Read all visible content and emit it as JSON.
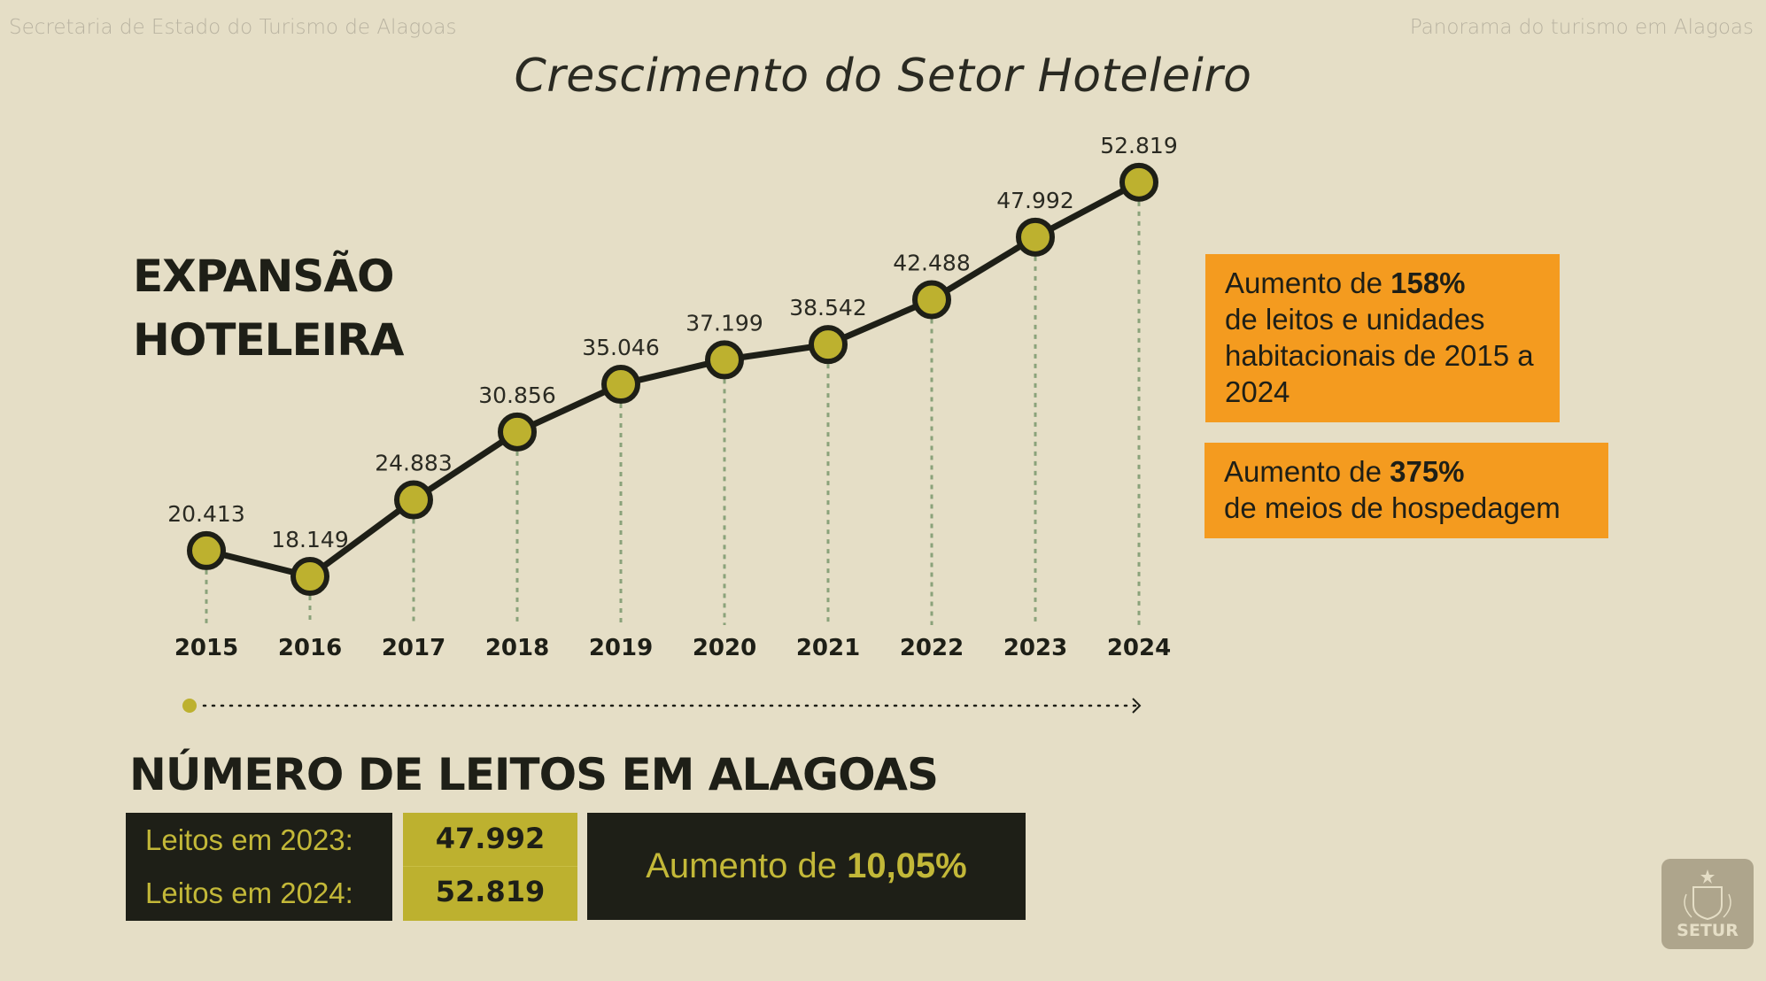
{
  "header": {
    "left": "Secretaria de Estado do Turismo de Alagoas",
    "right": "Panorama do turismo em Alagoas"
  },
  "title": "Crescimento do Setor Hoteleiro",
  "section_heading": {
    "line1": "EXPANSÃO",
    "line2": "HOTELEIRA"
  },
  "chart_data": {
    "type": "line",
    "categories": [
      "2015",
      "2016",
      "2017",
      "2018",
      "2019",
      "2020",
      "2021",
      "2022",
      "2023",
      "2024"
    ],
    "values": [
      20413,
      18149,
      24883,
      30856,
      35046,
      37199,
      38542,
      42488,
      47992,
      52819
    ],
    "labels": [
      "20.413",
      "18.149",
      "24.883",
      "30.856",
      "35.046",
      "37.199",
      "38.542",
      "42.488",
      "47.992",
      "52.819"
    ],
    "grid": false,
    "colors": {
      "line": "#1e1f17",
      "marker": "#bdb12f",
      "dropline": "#8aa27a"
    }
  },
  "callouts": [
    {
      "prefix": "Aumento de ",
      "bold": "158%",
      "rest": "de leitos e unidades habitacionais de 2015 a 2024"
    },
    {
      "prefix": "Aumento de ",
      "bold": "375%",
      "rest": "de meios de hospedagem"
    }
  ],
  "beds": {
    "heading": "NÚMERO DE LEITOS EM ALAGOAS",
    "rows": [
      {
        "label": "Leitos em 2023:",
        "value": "47.992"
      },
      {
        "label": "Leitos em 2024:",
        "value": "52.819"
      }
    ],
    "increase_prefix": "Aumento de ",
    "increase_value": "10,05%"
  },
  "logo": {
    "text": "SETUR"
  },
  "colors": {
    "background": "#e5dec6",
    "dark": "#1e1f17",
    "accent_yellow": "#bdb12f",
    "accent_orange": "#f49b1f"
  }
}
